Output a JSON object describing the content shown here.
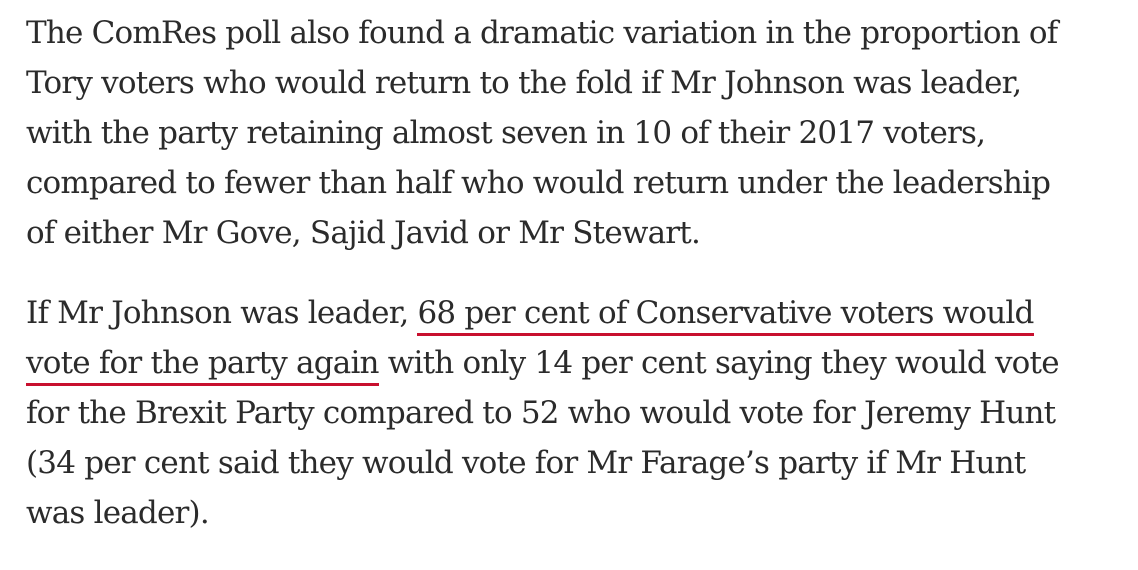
{
  "article": {
    "paragraph_1": {
      "lines": [
        "The ComRes poll also found a dramatic variation in the proportion of",
        "Tory voters who would return to the fold if Mr Johnson was leader,",
        "with the party retaining almost seven in 10 of their 2017 voters,",
        "compared to fewer than half who would return under the leadership",
        "of either Mr Gove, Sajid Javid or Mr Stewart."
      ]
    },
    "paragraph_2": {
      "line_1_before_link": "If Mr Johnson was leader, ",
      "link_line_1": "68 per cent of Conservative voters would",
      "link_line_2": "vote for the party again",
      "line_2_after_link": " with only 14 per cent saying they would vote",
      "lines_rest": [
        "for the Brexit Party compared to 52 who would vote for Jeremy Hunt",
        "(34 per cent said they would vote for Mr Farage’s party if Mr Hunt",
        "was leader)."
      ]
    }
  },
  "colors": {
    "text": "#2b2b2b",
    "link_underline": "#c8102e",
    "background": "#ffffff"
  }
}
